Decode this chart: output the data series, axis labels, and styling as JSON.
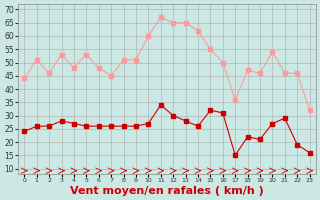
{
  "x": [
    0,
    1,
    2,
    3,
    4,
    5,
    6,
    7,
    8,
    9,
    10,
    11,
    12,
    13,
    14,
    15,
    16,
    17,
    18,
    19,
    20,
    21,
    22,
    23
  ],
  "rafales": [
    44,
    51,
    46,
    53,
    48,
    53,
    48,
    45,
    51,
    51,
    60,
    67,
    65,
    65,
    62,
    55,
    50,
    36,
    47,
    46,
    54,
    46,
    46,
    32
  ],
  "moyen": [
    24,
    26,
    26,
    28,
    27,
    26,
    26,
    26,
    26,
    26,
    27,
    34,
    30,
    28,
    26,
    32,
    31,
    15,
    22,
    21,
    27,
    29,
    19,
    16
  ],
  "bg_color": "#cce8e4",
  "grid_color": "#aaaaaa",
  "line_color_rafales": "#ff9999",
  "line_color_moyen": "#cc0000",
  "marker_size": 2.5,
  "xlabel": "Vent moyen/en rafales ( km/h )",
  "xlabel_color": "#cc0000",
  "xlabel_fontsize": 8,
  "yticks": [
    10,
    15,
    20,
    25,
    30,
    35,
    40,
    45,
    50,
    55,
    60,
    65,
    70
  ],
  "ylim": [
    8,
    72
  ],
  "xlim": [
    -0.5,
    23.5
  ]
}
